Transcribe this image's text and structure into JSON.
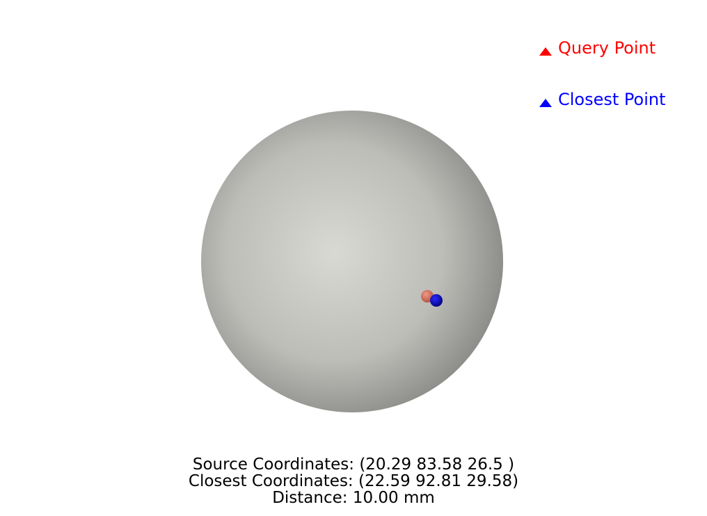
{
  "legend": {
    "items": [
      {
        "label": "Query Point",
        "color": "#ff0000",
        "marker": "triangle-icon"
      },
      {
        "label": "Closest Point",
        "color": "#0000ff",
        "marker": "triangle-icon"
      }
    ]
  },
  "scene": {
    "background_color": "#ffffff",
    "sphere_colors": {
      "highlight": "#d9d9d4",
      "mid": "#bdbdb8",
      "edge": "#858583"
    },
    "query_point_color": "#d9705a",
    "closest_point_color": "#0000c8"
  },
  "info": {
    "source_coordinates": "Source Coordinates: (20.29 83.58 26.5 )",
    "closest_coordinates": "Closest Coordinates: (22.59 92.81 29.58)",
    "distance": "Distance: 10.00 mm"
  }
}
